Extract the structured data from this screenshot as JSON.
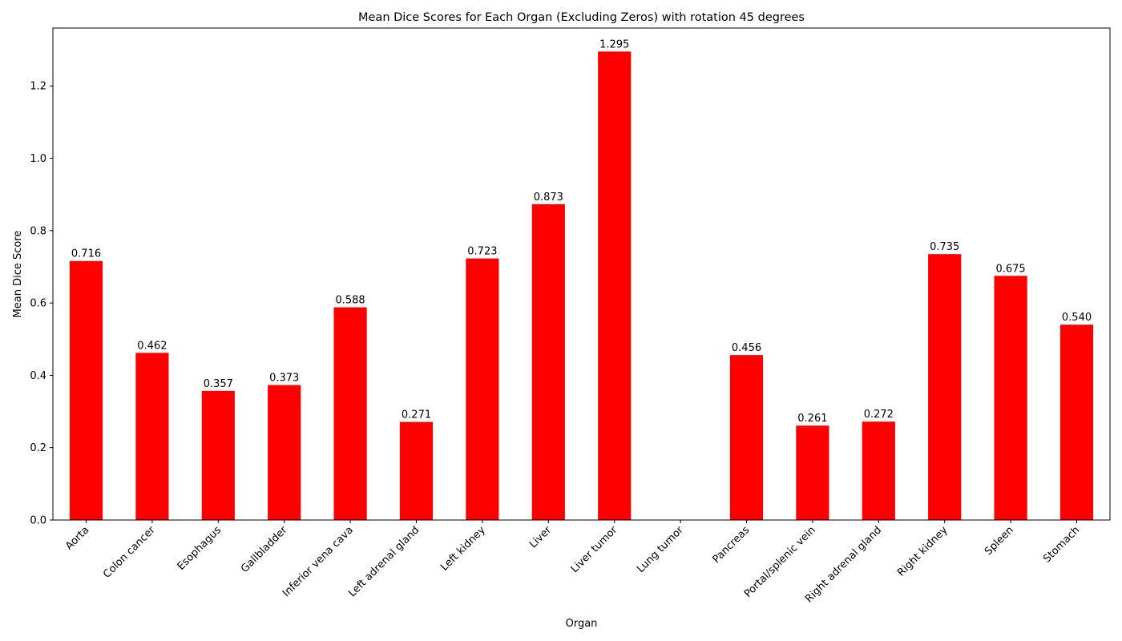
{
  "chart_data": {
    "type": "bar",
    "title": "Mean Dice Scores for Each Organ (Excluding Zeros) with rotation 45 degrees",
    "xlabel": "Organ",
    "ylabel": "Mean Dice Score",
    "ylim": [
      0,
      1.36
    ],
    "yticks": [
      "0.0",
      "0.2",
      "0.4",
      "0.6",
      "0.8",
      "1.0",
      "1.2"
    ],
    "categories": [
      "Aorta",
      "Colon cancer",
      "Esophagus",
      "Gallbladder",
      "Inferior vena cava",
      "Left adrenal gland",
      "Left kidney",
      "Liver",
      "Liver tumor",
      "Lung tumor",
      "Pancreas",
      "Portal/splenic vein",
      "Right adrenal gland",
      "Right kidney",
      "Spleen",
      "Stomach"
    ],
    "values": [
      0.716,
      0.462,
      0.357,
      0.373,
      0.588,
      0.271,
      0.723,
      0.873,
      1.295,
      null,
      0.456,
      0.261,
      0.272,
      0.735,
      0.675,
      0.54
    ],
    "value_labels": [
      "0.716",
      "0.462",
      "0.357",
      "0.373",
      "0.588",
      "0.271",
      "0.723",
      "0.873",
      "1.295",
      "",
      "0.456",
      "0.261",
      "0.272",
      "0.735",
      "0.675",
      "0.540"
    ],
    "bar_color": "#ff0000",
    "grid": false,
    "legend": "none"
  }
}
